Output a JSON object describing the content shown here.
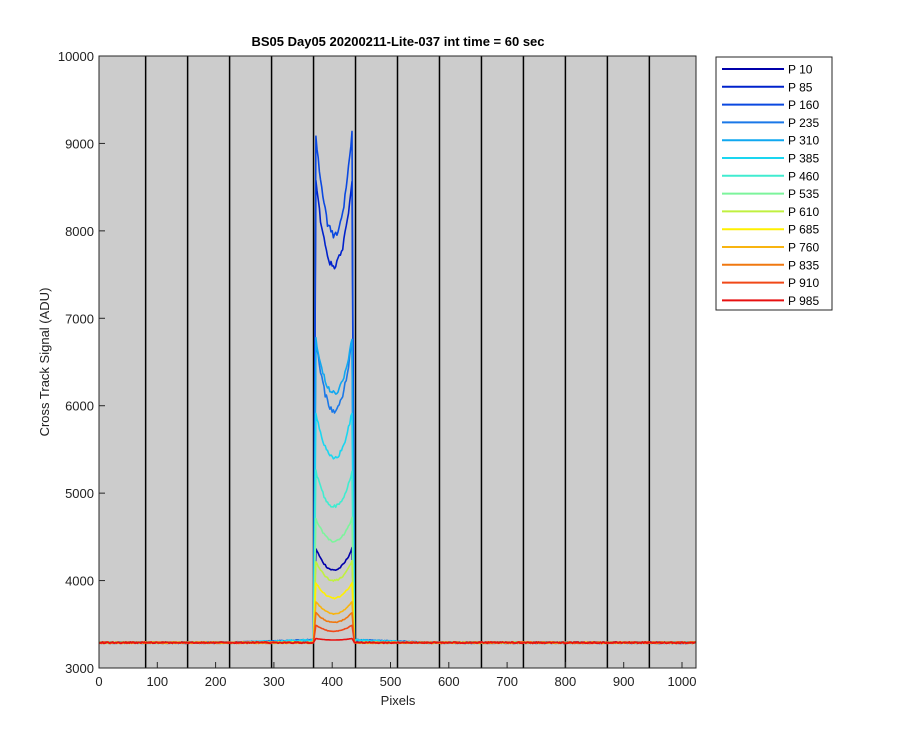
{
  "chart_data": {
    "type": "line",
    "title": "BS05 Day05 20200211-Lite-037 int time = 60 sec",
    "xlabel": "Pixels",
    "ylabel": "Cross Track Signal (ADU)",
    "xlim": [
      0,
      1024
    ],
    "ylim": [
      3000,
      10000
    ],
    "xticks": [
      0,
      100,
      200,
      300,
      400,
      500,
      600,
      700,
      800,
      900,
      1000
    ],
    "yticks": [
      3000,
      4000,
      5000,
      6000,
      7000,
      8000,
      9000,
      10000
    ],
    "vertical_lines_x": [
      80,
      152,
      224,
      296,
      368,
      440,
      512,
      584,
      656,
      728,
      800,
      872,
      944
    ],
    "background": "#cccccc",
    "grid": false,
    "legend_position": "outside-right-top",
    "signal_region": [
      370,
      436
    ],
    "baseline": 3290,
    "series": [
      {
        "name": "P 10",
        "color": "#0000aa",
        "ends": 4400,
        "center": 4120
      },
      {
        "name": "P 85",
        "color": "#0022cc",
        "ends": 8700,
        "center": 7600
      },
      {
        "name": "P 160",
        "color": "#0a48e0",
        "ends": 9250,
        "center": 7950
      },
      {
        "name": "P 235",
        "color": "#1a78e8",
        "ends": 6850,
        "center": 5950
      },
      {
        "name": "P 310",
        "color": "#10a8f0",
        "ends": 6850,
        "center": 6150
      },
      {
        "name": "P 385",
        "color": "#1ad6f0",
        "ends": 6000,
        "center": 5400
      },
      {
        "name": "P 460",
        "color": "#40ecd0",
        "ends": 5300,
        "center": 4850
      },
      {
        "name": "P 535",
        "color": "#7cf49c",
        "ends": 4750,
        "center": 4450
      },
      {
        "name": "P 610",
        "color": "#c0f040",
        "ends": 4250,
        "center": 4000
      },
      {
        "name": "P 685",
        "color": "#fff000",
        "ends": 4000,
        "center": 3800
      },
      {
        "name": "P 760",
        "color": "#f8b410",
        "ends": 3780,
        "center": 3620
      },
      {
        "name": "P 835",
        "color": "#f07810",
        "ends": 3650,
        "center": 3520
      },
      {
        "name": "P 910",
        "color": "#f04818",
        "ends": 3500,
        "center": 3420
      },
      {
        "name": "P 985",
        "color": "#e81010",
        "ends": 3340,
        "center": 3320
      }
    ]
  }
}
